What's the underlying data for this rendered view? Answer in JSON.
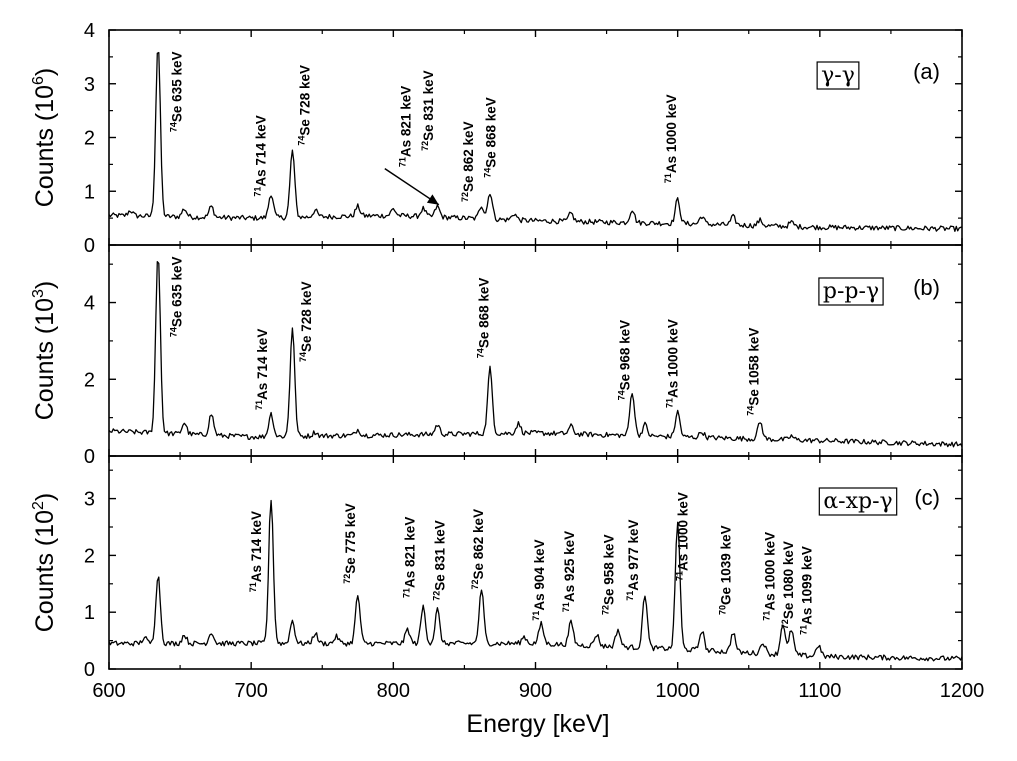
{
  "chart_data": {
    "type": "line",
    "xlabel": "Energy [keV]",
    "xlim": [
      600,
      1200
    ],
    "xticks": [
      600,
      700,
      800,
      900,
      1000,
      1100,
      1200
    ],
    "panels": [
      {
        "id": "a",
        "tag": "(a)",
        "box_label": "γ-γ",
        "ylabel": "Counts (10",
        "ylabel_exp": "6",
        "ylabel_close": ")",
        "ylim": [
          0,
          4
        ],
        "yticks": [
          0,
          1,
          2,
          3,
          4
        ],
        "baseline": {
          "x": [
            600,
            700,
            800,
            900,
            1000,
            1100,
            1200
          ],
          "y": [
            0.55,
            0.5,
            0.55,
            0.45,
            0.4,
            0.33,
            0.3
          ]
        },
        "peaks": [
          {
            "x": 615,
            "h": 0.1
          },
          {
            "x": 634.5,
            "h": 3.2
          },
          {
            "x": 653,
            "h": 0.15
          },
          {
            "x": 672,
            "h": 0.2
          },
          {
            "x": 714,
            "h": 0.45
          },
          {
            "x": 729,
            "h": 1.25
          },
          {
            "x": 745,
            "h": 0.12
          },
          {
            "x": 775,
            "h": 0.18
          },
          {
            "x": 800,
            "h": 0.12
          },
          {
            "x": 821,
            "h": 0.15
          },
          {
            "x": 831,
            "h": 0.2
          },
          {
            "x": 862,
            "h": 0.25
          },
          {
            "x": 868,
            "h": 0.5
          },
          {
            "x": 885,
            "h": 0.12
          },
          {
            "x": 925,
            "h": 0.15
          },
          {
            "x": 968,
            "h": 0.25
          },
          {
            "x": 1000,
            "h": 0.45
          },
          {
            "x": 1017,
            "h": 0.15
          },
          {
            "x": 1039,
            "h": 0.15
          },
          {
            "x": 1058,
            "h": 0.1
          },
          {
            "x": 1080,
            "h": 0.08
          }
        ],
        "labels": [
          {
            "iso": "74",
            "el": "Se",
            "energy": "635 keV",
            "x": 651,
            "y": 2.1
          },
          {
            "iso": "71",
            "el": "As",
            "energy": "714 keV",
            "x": 710,
            "y": 0.9
          },
          {
            "iso": "74",
            "el": "Se",
            "energy": "728 keV",
            "x": 741,
            "y": 1.85
          },
          {
            "iso": "71",
            "el": "As",
            "energy": "821 keV",
            "x": 812,
            "y": 1.45
          },
          {
            "iso": "72",
            "el": "Se",
            "energy": "831 keV",
            "x": 828,
            "y": 1.75
          },
          {
            "iso": "72",
            "el": "Se",
            "energy": "862 keV",
            "x": 856,
            "y": 0.8
          },
          {
            "iso": "74",
            "el": "Se",
            "energy": "868 keV",
            "x": 872,
            "y": 1.25
          },
          {
            "iso": "71",
            "el": "As",
            "energy": "1000 keV",
            "x": 999,
            "y": 1.15
          }
        ],
        "arrow": {
          "from": [
            794,
            1.42
          ],
          "to": [
            832,
            0.75
          ]
        }
      },
      {
        "id": "b",
        "tag": "(b)",
        "box_label": "p-p-γ",
        "ylabel": "Counts (10",
        "ylabel_exp": "3",
        "ylabel_close": ")",
        "ylim": [
          0,
          5.5
        ],
        "yticks": [
          0,
          2,
          4
        ],
        "baseline": {
          "x": [
            600,
            700,
            800,
            900,
            1000,
            1100,
            1200
          ],
          "y": [
            0.65,
            0.5,
            0.55,
            0.6,
            0.5,
            0.4,
            0.3
          ]
        },
        "peaks": [
          {
            "x": 634.5,
            "h": 4.7
          },
          {
            "x": 653,
            "h": 0.3
          },
          {
            "x": 672,
            "h": 0.55
          },
          {
            "x": 714,
            "h": 0.6
          },
          {
            "x": 729,
            "h": 2.85
          },
          {
            "x": 745,
            "h": 0.1
          },
          {
            "x": 775,
            "h": 0.15
          },
          {
            "x": 831,
            "h": 0.25
          },
          {
            "x": 868,
            "h": 1.7
          },
          {
            "x": 888,
            "h": 0.25
          },
          {
            "x": 925,
            "h": 0.2
          },
          {
            "x": 968,
            "h": 1.15
          },
          {
            "x": 977,
            "h": 0.3
          },
          {
            "x": 1000,
            "h": 0.65
          },
          {
            "x": 1017,
            "h": 0.15
          },
          {
            "x": 1058,
            "h": 0.45
          },
          {
            "x": 1080,
            "h": 0.1
          }
        ],
        "labels": [
          {
            "iso": "74",
            "el": "Se",
            "energy": "635 keV",
            "x": 651,
            "y": 3.1
          },
          {
            "iso": "71",
            "el": "As",
            "energy": "714 keV",
            "x": 711,
            "y": 1.2
          },
          {
            "iso": "74",
            "el": "Se",
            "energy": "728 keV",
            "x": 742,
            "y": 2.45
          },
          {
            "iso": "74",
            "el": "Se",
            "energy": "868 keV",
            "x": 867,
            "y": 2.55
          },
          {
            "iso": "74",
            "el": "Se",
            "energy": "968 keV",
            "x": 966,
            "y": 1.45
          },
          {
            "iso": "71",
            "el": "As",
            "energy": "1000 keV",
            "x": 1000,
            "y": 1.25
          },
          {
            "iso": "74",
            "el": "Se",
            "energy": "1058 keV",
            "x": 1057,
            "y": 1.05
          }
        ]
      },
      {
        "id": "c",
        "tag": "(c)",
        "box_label": "α-xp-γ",
        "ylabel": "Counts (10",
        "ylabel_exp": "2",
        "ylabel_close": ")",
        "ylim": [
          0,
          3.75
        ],
        "yticks": [
          0,
          1,
          2,
          3
        ],
        "baseline": {
          "x": [
            600,
            700,
            800,
            900,
            1000,
            1100,
            1200
          ],
          "y": [
            0.45,
            0.45,
            0.45,
            0.45,
            0.35,
            0.22,
            0.18
          ]
        },
        "peaks": [
          {
            "x": 625,
            "h": 0.1
          },
          {
            "x": 634.5,
            "h": 1.2
          },
          {
            "x": 653,
            "h": 0.15
          },
          {
            "x": 672,
            "h": 0.2
          },
          {
            "x": 714,
            "h": 2.55
          },
          {
            "x": 729,
            "h": 0.4
          },
          {
            "x": 745,
            "h": 0.18
          },
          {
            "x": 760,
            "h": 0.12
          },
          {
            "x": 775,
            "h": 0.85
          },
          {
            "x": 810,
            "h": 0.25
          },
          {
            "x": 821,
            "h": 0.65
          },
          {
            "x": 831,
            "h": 0.6
          },
          {
            "x": 862,
            "h": 0.95
          },
          {
            "x": 892,
            "h": 0.12
          },
          {
            "x": 904,
            "h": 0.35
          },
          {
            "x": 925,
            "h": 0.4
          },
          {
            "x": 943,
            "h": 0.2
          },
          {
            "x": 958,
            "h": 0.3
          },
          {
            "x": 977,
            "h": 0.95
          },
          {
            "x": 1000,
            "h": 2.25
          },
          {
            "x": 1017,
            "h": 0.35
          },
          {
            "x": 1039,
            "h": 0.35
          },
          {
            "x": 1060,
            "h": 0.2
          },
          {
            "x": 1074,
            "h": 0.55
          },
          {
            "x": 1080,
            "h": 0.45
          },
          {
            "x": 1099,
            "h": 0.2
          }
        ],
        "labels": [
          {
            "iso": "71",
            "el": "As",
            "energy": "714 keV",
            "x": 707,
            "y": 1.35
          },
          {
            "iso": "72",
            "el": "Se",
            "energy": "775 keV",
            "x": 773,
            "y": 1.5
          },
          {
            "iso": "71",
            "el": "As",
            "energy": "821 keV",
            "x": 815,
            "y": 1.25
          },
          {
            "iso": "72",
            "el": "Se",
            "energy": "831 keV",
            "x": 836,
            "y": 1.2
          },
          {
            "iso": "72",
            "el": "Se",
            "energy": "862 keV",
            "x": 863,
            "y": 1.4
          },
          {
            "iso": "71",
            "el": "As",
            "energy": "904 keV",
            "x": 906,
            "y": 0.85
          },
          {
            "iso": "71",
            "el": "As",
            "energy": "925 keV",
            "x": 927,
            "y": 1.0
          },
          {
            "iso": "72",
            "el": "Se",
            "energy": "958 keV",
            "x": 955,
            "y": 0.95
          },
          {
            "iso": "71",
            "el": "As",
            "energy": "977 keV",
            "x": 972,
            "y": 1.2
          },
          {
            "iso": "71",
            "el": "As",
            "energy": "1000 keV",
            "x": 1007,
            "y": 1.55
          },
          {
            "iso": "70",
            "el": "Ge",
            "energy": "1039 keV",
            "x": 1037,
            "y": 0.95
          },
          {
            "iso": "71",
            "el": "As",
            "energy": "1000 keV",
            "x": 1068,
            "y": 0.85
          },
          {
            "iso": "72",
            "el": "Se",
            "energy": "1080 keV",
            "x": 1081,
            "y": 0.7
          },
          {
            "iso": "71",
            "el": "As",
            "energy": "1099 keV",
            "x": 1094,
            "y": 0.6
          }
        ]
      }
    ]
  }
}
